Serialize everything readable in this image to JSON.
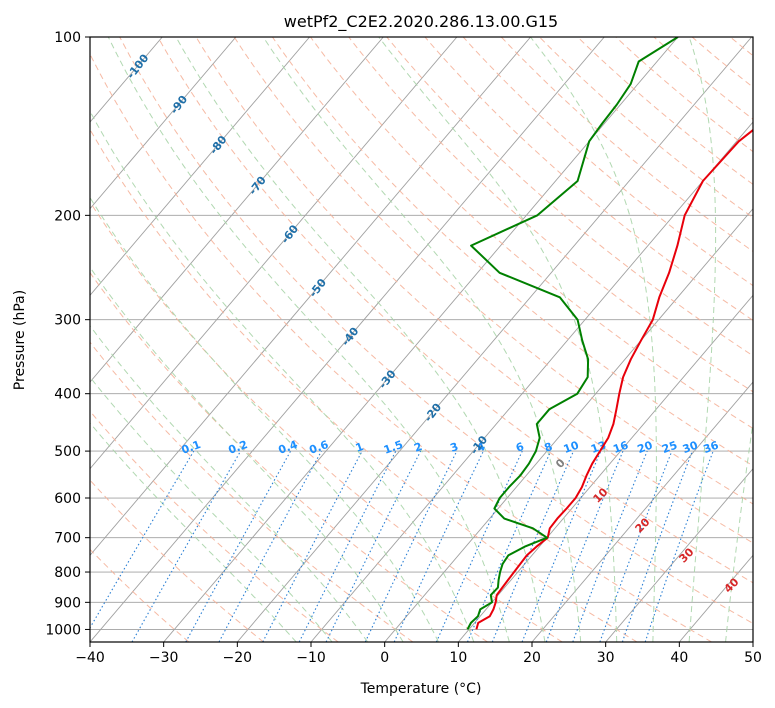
{
  "chart_data": {
    "type": "line",
    "title": "wetPf2_C2E2.2020.286.13.00.G15",
    "xlabel": "Temperature (°C)",
    "ylabel": "Pressure (hPa)",
    "xlim": [
      -40,
      50
    ],
    "ylim": [
      1050,
      100
    ],
    "y_scale": "log",
    "x_ticks": [
      -40,
      -30,
      -20,
      -10,
      0,
      10,
      20,
      30,
      40,
      50
    ],
    "y_ticks": [
      100,
      200,
      300,
      400,
      500,
      600,
      700,
      800,
      900,
      1000
    ],
    "grid": true,
    "colors": {
      "temperature": "#e8000b",
      "dewpoint": "#008000",
      "isotherm": "#a0a0a0",
      "dry_adiabat": "#f5b29a",
      "moist_adiabat": "#a8d4a8",
      "mixing_ratio": "#2a7fd4",
      "mixing_label": "#1e90ff",
      "isotherm_label": "#1f6fa8",
      "moist_label": "#d62728",
      "zero_label": "#808080"
    },
    "series": [
      {
        "key": "temperature",
        "pressure": [
          1000,
          975,
          950,
          925,
          900,
          875,
          850,
          825,
          800,
          775,
          750,
          725,
          700,
          675,
          650,
          625,
          600,
          575,
          550,
          525,
          500,
          475,
          450,
          425,
          400,
          375,
          350,
          325,
          300,
          275,
          250,
          225,
          200,
          175,
          150,
          140,
          130,
          120,
          110,
          100
        ],
        "values": [
          11.0,
          10.5,
          11.3,
          11.0,
          10.5,
          9.8,
          9.7,
          9.6,
          9.5,
          9.4,
          9.3,
          9.6,
          10.1,
          9.3,
          9.2,
          9.3,
          9.3,
          8.9,
          8.2,
          7.6,
          7.2,
          6.8,
          5.9,
          4.6,
          3.2,
          1.8,
          0.8,
          0.0,
          -0.8,
          -2.5,
          -4.0,
          -6.0,
          -8.5,
          -10.0,
          -9.7,
          -8.7,
          -6.6,
          -5.2,
          -4.5,
          -4.0
        ]
      },
      {
        "key": "dewpoint",
        "pressure": [
          1000,
          975,
          950,
          925,
          900,
          875,
          850,
          825,
          800,
          775,
          750,
          725,
          700,
          675,
          650,
          625,
          600,
          575,
          550,
          525,
          500,
          475,
          450,
          425,
          400,
          375,
          350,
          325,
          300,
          275,
          250,
          225,
          200,
          175,
          150,
          140,
          130,
          120,
          110,
          100
        ],
        "values": [
          9.8,
          9.5,
          9.7,
          9.2,
          10.0,
          9.0,
          9.1,
          8.3,
          7.6,
          7.0,
          6.8,
          8.0,
          10.0,
          7.0,
          2.0,
          -0.5,
          -1.0,
          -1.0,
          -0.8,
          -1.0,
          -1.5,
          -2.5,
          -4.5,
          -4.5,
          -2.5,
          -3.0,
          -5.0,
          -8.0,
          -11.0,
          -16.0,
          -27.0,
          -34.0,
          -28.5,
          -27.0,
          -30.0,
          -30.3,
          -30.5,
          -31.0,
          -32.5,
          -30.0
        ]
      }
    ],
    "isotherm_labels": [
      -100,
      -90,
      -80,
      -70,
      -60,
      -50,
      -40,
      -30,
      -20,
      -10
    ],
    "moist_adiabat_labels": [
      0,
      10,
      20,
      30,
      40
    ],
    "mixing_ratio_labels": [
      "0.1",
      "0.2",
      "0.4",
      "0.6",
      "1",
      "1.5",
      "2",
      "3",
      "4",
      "6",
      "8",
      "10",
      "13",
      "16",
      "20",
      "25",
      "30",
      "36"
    ],
    "mixing_ratio_values": [
      0.1,
      0.2,
      0.4,
      0.6,
      1,
      1.5,
      2,
      3,
      4,
      6,
      8,
      10,
      13,
      16,
      20,
      25,
      30,
      36
    ]
  }
}
